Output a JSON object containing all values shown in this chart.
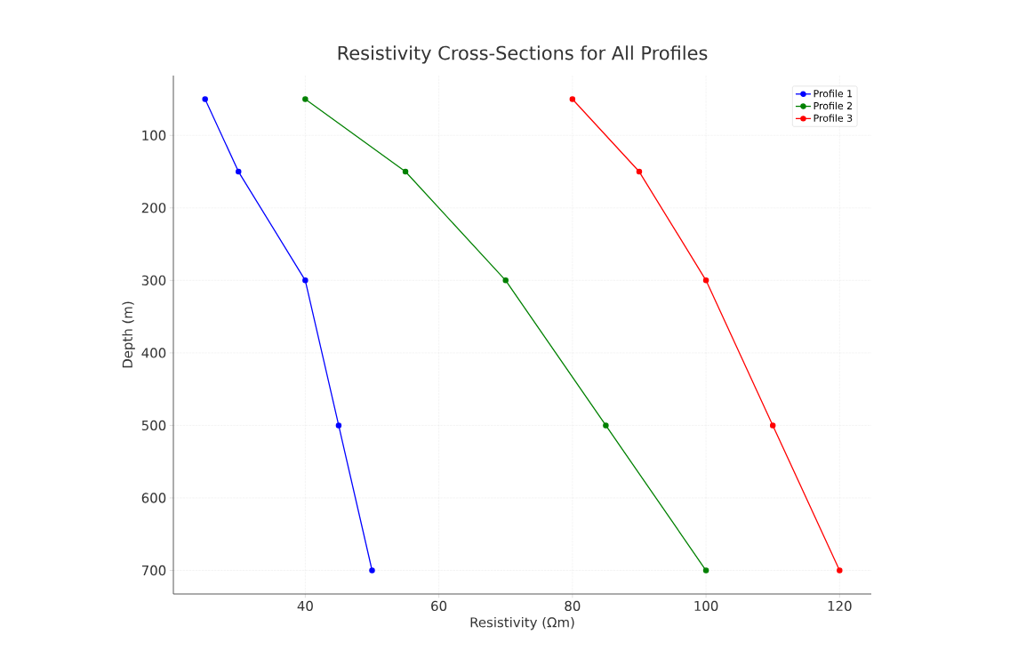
{
  "chart_data": {
    "type": "line",
    "title": "Resistivity Cross-Sections for All Profiles",
    "xlabel": "Resistivity (Ωm)",
    "ylabel": "Depth (m)",
    "xlim": [
      20.25,
      124.75
    ],
    "ylim": [
      732.5,
      17.5
    ],
    "xticks": [
      40,
      60,
      80,
      100,
      120
    ],
    "yticks": [
      100,
      200,
      300,
      400,
      500,
      600,
      700
    ],
    "grid": true,
    "legend": "top right",
    "marker": "circle",
    "line_style": "solid",
    "series": [
      {
        "name": "Profile 1",
        "color": "#0000ff",
        "x": [
          25,
          30,
          40,
          45,
          50
        ],
        "values": [
          50,
          150,
          300,
          500,
          700
        ]
      },
      {
        "name": "Profile 2",
        "color": "#008000",
        "x": [
          40,
          55,
          70,
          85,
          100
        ],
        "values": [
          50,
          150,
          300,
          500,
          700
        ]
      },
      {
        "name": "Profile 3",
        "color": "#ff0000",
        "x": [
          80,
          90,
          100,
          110,
          120
        ],
        "values": [
          50,
          150,
          300,
          500,
          700
        ]
      }
    ]
  }
}
